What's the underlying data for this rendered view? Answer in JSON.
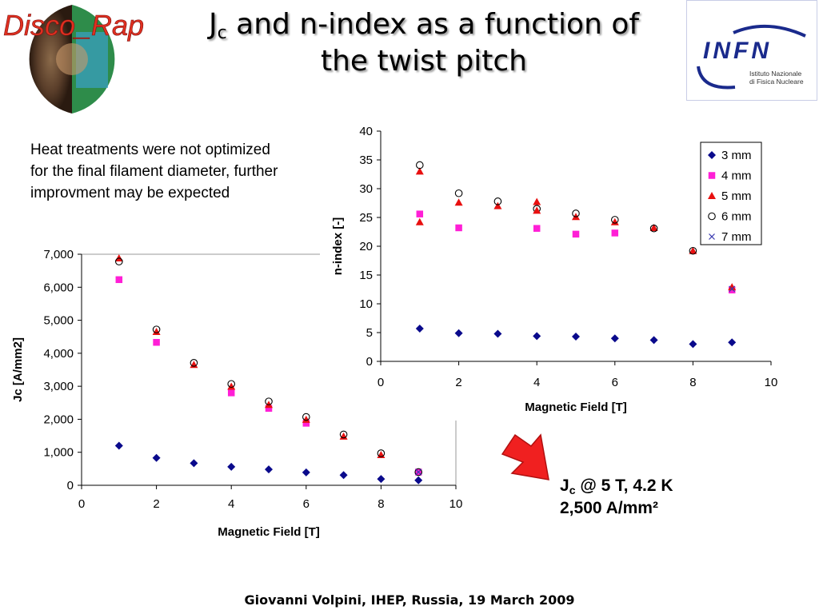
{
  "slide": {
    "title_main": "J",
    "title_sub": "c",
    "title_rest": " and n-index as a function of",
    "title_line2": "the twist pitch",
    "note": "Heat treatments were not optimized for the final filament diameter, further improvment may be expected",
    "result_j": "J",
    "result_sub": "c",
    "result_rest": " @ 5 T, 4.2 K",
    "result_value": "2,500 A/mm²",
    "footer": "Giovanni Volpini, IHEP, Russia, 19 March 2009",
    "logo_left_text": "Disco_Rap",
    "logo_right_text": "INFN",
    "logo_right_caption1": "Istituto Nazionale",
    "logo_right_caption2": "di Fisica Nucleare",
    "arrow_color": "#f02020"
  },
  "chart_data": [
    {
      "type": "scatter",
      "id": "jc",
      "title": "",
      "xlabel": "Magnetic Field [T]",
      "ylabel": "Jc [A/mm2]",
      "xlim": [
        0,
        10
      ],
      "ylim": [
        0,
        7000
      ],
      "xticks": [
        0,
        2,
        4,
        6,
        8,
        10
      ],
      "yticks": [
        0,
        1000,
        2000,
        3000,
        4000,
        5000,
        6000,
        7000
      ],
      "ytick_labels": [
        "0",
        "1,000",
        "2,000",
        "3,000",
        "4,000",
        "5,000",
        "6,000",
        "7,000"
      ],
      "legend": false,
      "x": [
        1,
        2,
        3,
        4,
        5,
        6,
        7,
        8,
        9
      ],
      "series": [
        {
          "name": "3 mm",
          "marker": "diamond",
          "color": "#0a0a8c",
          "values": [
            1200,
            830,
            670,
            560,
            480,
            390,
            310,
            190,
            150
          ]
        },
        {
          "name": "4 mm",
          "marker": "square",
          "color": "#ff1fd6",
          "values": [
            6230,
            4330,
            null,
            2800,
            2330,
            1880,
            null,
            null,
            400
          ]
        },
        {
          "name": "5 mm",
          "marker": "triangle",
          "color": "#e81010",
          "values": [
            6880,
            4650,
            3650,
            2990,
            2440,
            1990,
            1480,
            920,
            null
          ]
        },
        {
          "name": "6 mm",
          "marker": "circle",
          "color": "#000000",
          "values": [
            6780,
            4720,
            3710,
            3070,
            2540,
            2070,
            1540,
            970,
            400
          ]
        },
        {
          "name": "7 mm",
          "marker": "x",
          "color": "#3a3ab0",
          "values": [
            null,
            null,
            null,
            null,
            null,
            null,
            null,
            null,
            400
          ]
        }
      ]
    },
    {
      "type": "scatter",
      "id": "nindex",
      "title": "",
      "xlabel": "Magnetic Field [T]",
      "ylabel": "n-index [-]",
      "xlim": [
        0,
        10
      ],
      "ylim": [
        0,
        40
      ],
      "xticks": [
        0,
        2,
        4,
        6,
        8,
        10
      ],
      "yticks": [
        0,
        5,
        10,
        15,
        20,
        25,
        30,
        35,
        40
      ],
      "ytick_labels": [
        "0",
        "5",
        "10",
        "15",
        "20",
        "25",
        "30",
        "35",
        "40"
      ],
      "legend": true,
      "legend_position": "top-right",
      "x": [
        1,
        2,
        3,
        4,
        5,
        6,
        7,
        8,
        9
      ],
      "series": [
        {
          "name": "3 mm",
          "marker": "diamond",
          "color": "#0a0a8c",
          "values": [
            5.7,
            4.9,
            4.8,
            4.4,
            4.3,
            4.0,
            3.7,
            3.0,
            3.3
          ]
        },
        {
          "name": "4 mm",
          "marker": "square",
          "color": "#ff1fd6",
          "values": [
            25.6,
            23.2,
            null,
            23.1,
            22.1,
            22.3,
            null,
            null,
            12.4
          ]
        },
        {
          "name": "5 mm",
          "marker": "triangle",
          "color": "#e81010",
          "values": [
            33.0,
            27.6,
            27.0,
            27.7,
            25.1,
            24.2,
            23.2,
            19.2,
            12.9
          ]
        },
        {
          "name": "6 mm",
          "marker": "circle",
          "color": "#000000",
          "values": [
            34.1,
            29.2,
            27.8,
            26.5,
            25.7,
            24.6,
            23.1,
            19.2,
            null
          ]
        },
        {
          "name": "7 mm",
          "marker": "x",
          "color": "#3a3ab0",
          "values": [
            null,
            null,
            null,
            null,
            null,
            null,
            null,
            null,
            12.6
          ]
        }
      ],
      "extra_points": [
        {
          "series": "5 mm",
          "x": 1,
          "y": 24.2
        },
        {
          "series": "5 mm",
          "x": 4,
          "y": 26.2
        }
      ]
    }
  ]
}
